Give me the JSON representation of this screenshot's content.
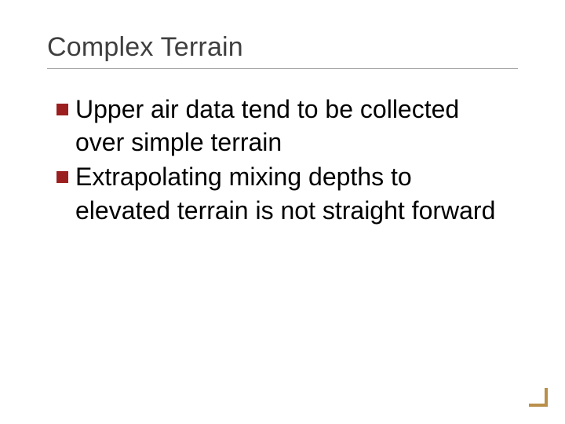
{
  "slide": {
    "title": "Complex Terrain",
    "title_color": "#3f3f3f",
    "title_fontsize": 34,
    "rule_color": "#9a9a9a",
    "background_color": "#ffffff",
    "bullets": [
      {
        "text": "Upper air data tend to be collected over simple terrain"
      },
      {
        "text": "Extrapolating mixing depths to elevated terrain is not straight forward"
      }
    ],
    "bullet_marker_color": "#9b1f1f",
    "body_fontsize": 32,
    "body_color": "#000000",
    "corner_accent_color": "#b98f4a"
  }
}
